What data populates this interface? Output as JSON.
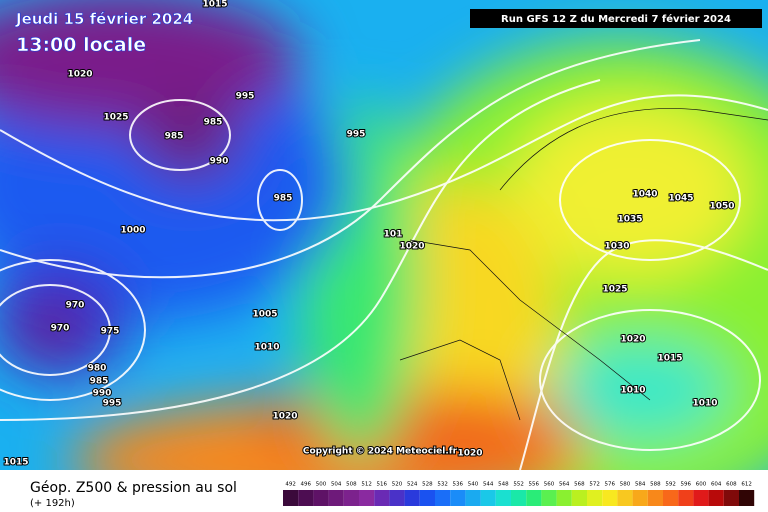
{
  "header": {
    "date": "Jeudi 15 février 2024",
    "time": "13:00 locale",
    "run": "Run GFS 12 Z du Mercredi 7 février 2024"
  },
  "copyright": "Copyright © 2024 Meteociel.fr",
  "footer": {
    "title": "Géop. Z500 & pression au sol",
    "lead": "(+ 192h)"
  },
  "isobars": [
    "1015",
    "1020",
    "1025",
    "985",
    "985",
    "995",
    "995",
    "990",
    "985",
    "1000",
    "101",
    "1020",
    "970",
    "970",
    "975",
    "980",
    "985",
    "990",
    "995",
    "1005",
    "1010",
    "1020",
    "1015",
    "1020",
    "1040",
    "1045",
    "1050",
    "1035",
    "1030",
    "1025",
    "1020",
    "1015",
    "1010",
    "1010"
  ],
  "legend": [
    {
      "label": "492",
      "color": "#3b0a3b"
    },
    {
      "label": "496",
      "color": "#4d0d52"
    },
    {
      "label": "500",
      "color": "#5e1266"
    },
    {
      "label": "504",
      "color": "#6e1a7a"
    },
    {
      "label": "508",
      "color": "#7c228d"
    },
    {
      "label": "512",
      "color": "#8a2aa0"
    },
    {
      "label": "516",
      "color": "#6a2ab4"
    },
    {
      "label": "520",
      "color": "#4a32c8"
    },
    {
      "label": "524",
      "color": "#2a3adc"
    },
    {
      "label": "528",
      "color": "#1a52f0"
    },
    {
      "label": "532",
      "color": "#1a6ef8"
    },
    {
      "label": "536",
      "color": "#1a8cf8"
    },
    {
      "label": "540",
      "color": "#1aaaf0"
    },
    {
      "label": "544",
      "color": "#1ac8e8"
    },
    {
      "label": "548",
      "color": "#1ae0d0"
    },
    {
      "label": "552",
      "color": "#1ae8a8"
    },
    {
      "label": "556",
      "color": "#2aec78"
    },
    {
      "label": "560",
      "color": "#5af050"
    },
    {
      "label": "564",
      "color": "#8af030"
    },
    {
      "label": "568",
      "color": "#baf020"
    },
    {
      "label": "572",
      "color": "#e0f020"
    },
    {
      "label": "576",
      "color": "#f8e820"
    },
    {
      "label": "580",
      "color": "#f8c820"
    },
    {
      "label": "584",
      "color": "#f8a81a"
    },
    {
      "label": "588",
      "color": "#f8881a"
    },
    {
      "label": "592",
      "color": "#f8681a"
    },
    {
      "label": "596",
      "color": "#f0401a"
    },
    {
      "label": "600",
      "color": "#e01a1a"
    },
    {
      "label": "604",
      "color": "#b80a0a"
    },
    {
      "label": "608",
      "color": "#800a0a"
    },
    {
      "label": "612",
      "color": "#300505"
    }
  ]
}
